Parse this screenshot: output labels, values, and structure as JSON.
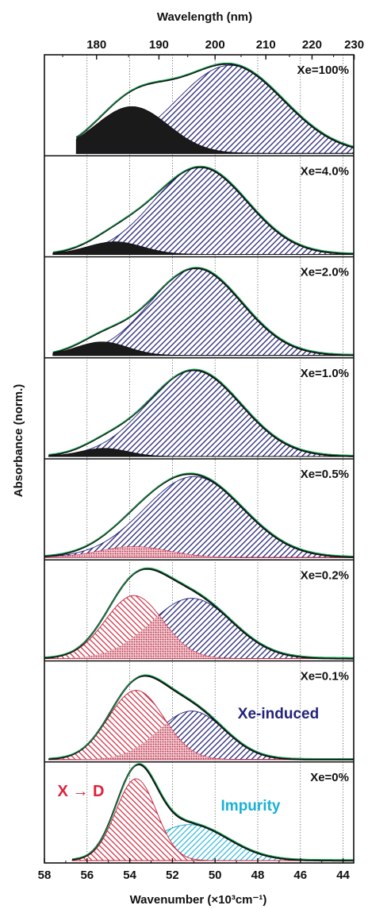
{
  "chart_data": {
    "type": "area",
    "title": "",
    "xlabel": "Wavenumber (×10³cm⁻¹)",
    "x2label": "Wavelength (nm)",
    "ylabel": "Absorbance (norm.)",
    "xlim": [
      58,
      43.5
    ],
    "x_ticks": [
      "58",
      "56",
      "54",
      "52",
      "50",
      "48",
      "46",
      "44"
    ],
    "x_tick_values": [
      58,
      56,
      54,
      52,
      50,
      48,
      46,
      44
    ],
    "x2_ticks": [
      "180",
      "190",
      "200",
      "210",
      "220",
      "230"
    ],
    "x2_tick_values": [
      180,
      190,
      200,
      210,
      220,
      230
    ],
    "grid": "vertical dotted lines",
    "annotations": {
      "xe_induced": "Xe-induced",
      "impurity": "Impurity",
      "x_to_d": "X → D"
    },
    "colors": {
      "black_band": "#1a1a1a",
      "xe_band": "#23237a",
      "xd_band": "#d0243a",
      "impurity_band": "#1ab0d8",
      "fit_line": "#14a050",
      "impurity_label": "#1ab0d8",
      "xe_label": "#23237a",
      "xd_label": "#e0203a"
    },
    "panels": [
      {
        "label": "Xe=100%",
        "x_range": [
          56.5,
          43.5
        ],
        "components": [
          {
            "type": "black",
            "center": 53.9,
            "width": 1.7,
            "amplitude": 0.52
          },
          {
            "type": "xe",
            "center": 49.3,
            "width": 2.5,
            "amplitude": 0.98
          }
        ]
      },
      {
        "label": "Xe=4.0%",
        "x_range": [
          57.6,
          43.5
        ],
        "components": [
          {
            "type": "black",
            "center": 54.7,
            "width": 1.3,
            "amplitude": 0.14
          },
          {
            "type": "xe",
            "center": 50.7,
            "width": 2.2,
            "amplitude": 0.97
          }
        ]
      },
      {
        "label": "Xe=2.0%",
        "x_range": [
          57.6,
          43.5
        ],
        "components": [
          {
            "type": "black",
            "center": 55.3,
            "width": 1.2,
            "amplitude": 0.15
          },
          {
            "type": "xe",
            "center": 50.9,
            "width": 2.15,
            "amplitude": 0.97
          }
        ]
      },
      {
        "label": "Xe=1.0%",
        "x_range": [
          57.8,
          43.5
        ],
        "components": [
          {
            "type": "black",
            "center": 55.2,
            "width": 1.1,
            "amplitude": 0.09
          },
          {
            "type": "xe",
            "center": 51.0,
            "width": 2.2,
            "amplitude": 0.96
          }
        ]
      },
      {
        "label": "Xe=0.5%",
        "x_range": [
          58.0,
          43.5
        ],
        "components": [
          {
            "type": "xd",
            "center": 53.8,
            "width": 1.6,
            "amplitude": 0.12
          },
          {
            "type": "xe",
            "center": 51.0,
            "width": 2.3,
            "amplitude": 0.9
          }
        ]
      },
      {
        "label": "Xe=0.2%",
        "x_range": [
          58.0,
          43.5
        ],
        "components": [
          {
            "type": "xd",
            "center": 53.8,
            "width": 1.35,
            "amplitude": 0.7
          },
          {
            "type": "xe",
            "center": 51.1,
            "width": 1.9,
            "amplitude": 0.67
          }
        ]
      },
      {
        "label": "Xe=0.1%",
        "x_range": [
          57.8,
          43.5
        ],
        "components": [
          {
            "type": "xd",
            "center": 53.7,
            "width": 1.3,
            "amplitude": 0.77
          },
          {
            "type": "xe",
            "center": 51.1,
            "width": 1.55,
            "amplitude": 0.54
          }
        ]
      },
      {
        "label": "Xe=0%",
        "x_range": [
          56.7,
          43.5
        ],
        "components": [
          {
            "type": "xd",
            "center": 53.7,
            "width": 0.95,
            "amplitude": 0.91
          },
          {
            "type": "impurity",
            "center": 51.2,
            "width": 1.8,
            "amplitude": 0.4
          }
        ]
      }
    ]
  }
}
